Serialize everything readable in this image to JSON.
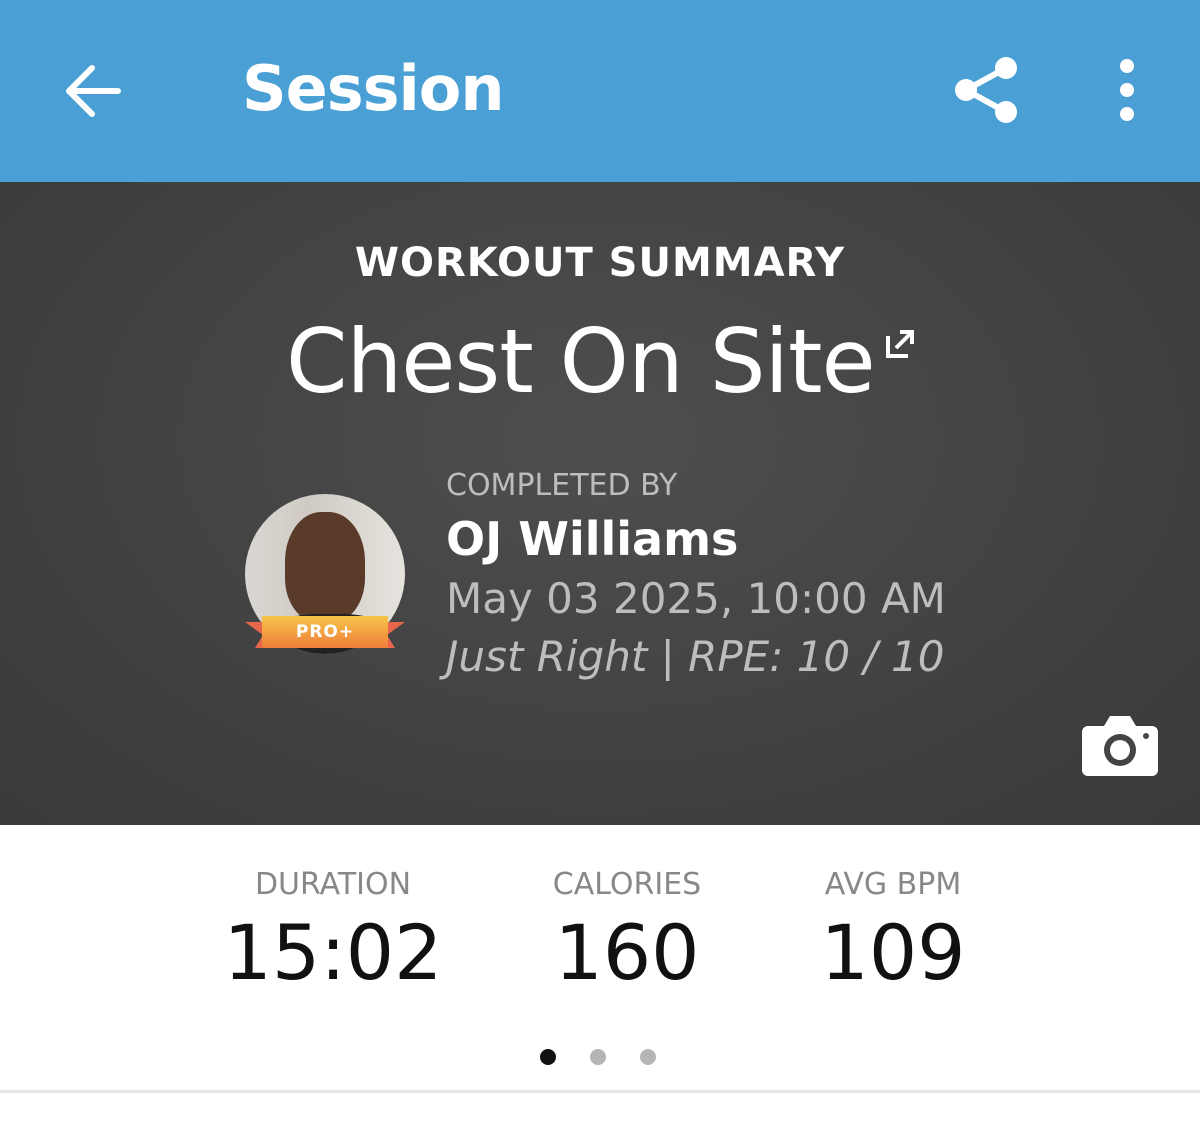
{
  "header": {
    "title": "Session",
    "back_icon": "arrow-left-icon",
    "share_icon": "share-icon",
    "more_icon": "more-vertical-icon",
    "color": "#4aa0d5"
  },
  "hero": {
    "summary_label": "WORKOUT SUMMARY",
    "workout_name": "Chest On Site",
    "completed_by_label": "COMPLETED BY",
    "user_name": "OJ Williams",
    "badge": "PRO+",
    "date": "May 03 2025, 10:00 AM",
    "effort": "Just Right | RPE: 10 / 10"
  },
  "stats": [
    {
      "label": "DURATION",
      "value": "15:02"
    },
    {
      "label": "CALORIES",
      "value": "160"
    },
    {
      "label": "AVG BPM",
      "value": "109"
    }
  ],
  "pager": {
    "pages": 3,
    "active": 1
  }
}
